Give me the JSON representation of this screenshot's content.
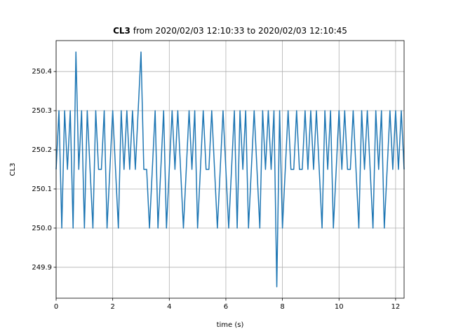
{
  "chart_data": {
    "type": "line",
    "title_bold": "CL3",
    "title": "from 2020/02/03 12:10:33 to 2020/02/03 12:10:45",
    "xlabel": "time (s)",
    "ylabel": "CL3",
    "x": [
      0,
      0.1,
      0.2,
      0.3,
      0.4,
      0.5,
      0.6,
      0.7,
      0.8,
      0.9,
      1,
      1.1,
      1.2,
      1.3,
      1.4,
      1.5,
      1.6,
      1.7,
      1.8,
      1.9,
      2,
      2.1,
      2.2,
      2.3,
      2.4,
      2.5,
      2.6,
      2.7,
      2.8,
      2.9,
      3,
      3.1,
      3.2,
      3.3,
      3.4,
      3.5,
      3.6,
      3.7,
      3.8,
      3.9,
      4,
      4.1,
      4.2,
      4.3,
      4.4,
      4.5,
      4.6,
      4.7,
      4.8,
      4.9,
      5,
      5.1,
      5.2,
      5.3,
      5.4,
      5.5,
      5.6,
      5.7,
      5.8,
      5.9,
      6,
      6.1,
      6.2,
      6.3,
      6.4,
      6.5,
      6.6,
      6.7,
      6.8,
      6.9,
      7,
      7.1,
      7.2,
      7.3,
      7.4,
      7.5,
      7.6,
      7.7,
      7.8,
      7.9,
      8,
      8.1,
      8.2,
      8.3,
      8.4,
      8.5,
      8.6,
      8.7,
      8.8,
      8.9,
      9,
      9.1,
      9.2,
      9.3,
      9.4,
      9.5,
      9.6,
      9.7,
      9.8,
      9.9,
      10,
      10.1,
      10.2,
      10.3,
      10.4,
      10.5,
      10.6,
      10.7,
      10.8,
      10.9,
      11,
      11.1,
      11.2,
      11.3,
      11.4,
      11.5,
      11.6,
      11.7,
      11.8,
      11.9,
      12,
      12.1,
      12.2,
      12.3
    ],
    "series": [
      {
        "name": "CL3",
        "color": "#1f77b4",
        "values": [
          250.15,
          250.3,
          250.0,
          250.3,
          250.15,
          250.3,
          250.0,
          250.45,
          250.15,
          250.3,
          250.0,
          250.3,
          250.15,
          250.0,
          250.3,
          250.15,
          250.15,
          250.3,
          250.0,
          250.15,
          250.3,
          250.15,
          250.0,
          250.3,
          250.15,
          250.3,
          250.15,
          250.3,
          250.15,
          250.3,
          250.45,
          250.15,
          250.15,
          250.0,
          250.15,
          250.3,
          250.0,
          250.15,
          250.3,
          250.0,
          250.15,
          250.3,
          250.15,
          250.3,
          250.15,
          250.0,
          250.15,
          250.3,
          250.15,
          250.3,
          250.0,
          250.15,
          250.3,
          250.15,
          250.15,
          250.3,
          250.15,
          250.0,
          250.15,
          250.3,
          250.15,
          250.0,
          250.15,
          250.3,
          250.0,
          250.3,
          250.15,
          250.3,
          250.0,
          250.15,
          250.3,
          250.15,
          250.0,
          250.3,
          250.15,
          250.3,
          250.15,
          250.3,
          249.85,
          250.3,
          250.0,
          250.15,
          250.3,
          250.15,
          250.15,
          250.3,
          250.15,
          250.15,
          250.3,
          250.15,
          250.3,
          250.15,
          250.3,
          250.15,
          250.0,
          250.3,
          250.15,
          250.3,
          250.0,
          250.15,
          250.3,
          250.15,
          250.3,
          250.15,
          250.15,
          250.3,
          250.15,
          250.0,
          250.3,
          250.15,
          250.3,
          250.15,
          250.0,
          250.3,
          250.15,
          250.3,
          250.0,
          250.15,
          250.3,
          250.15,
          250.3,
          250.15,
          250.3,
          250.15
        ]
      }
    ],
    "xlim": [
      0,
      12.3
    ],
    "ylim": [
      249.821,
      250.479
    ],
    "xticks": [
      0,
      2,
      4,
      6,
      8,
      10,
      12
    ],
    "yticks": [
      249.9,
      {
        "value": 250,
        "label": "250.0"
      },
      250.1,
      250.2,
      250.3,
      250.4
    ],
    "grid": true
  }
}
